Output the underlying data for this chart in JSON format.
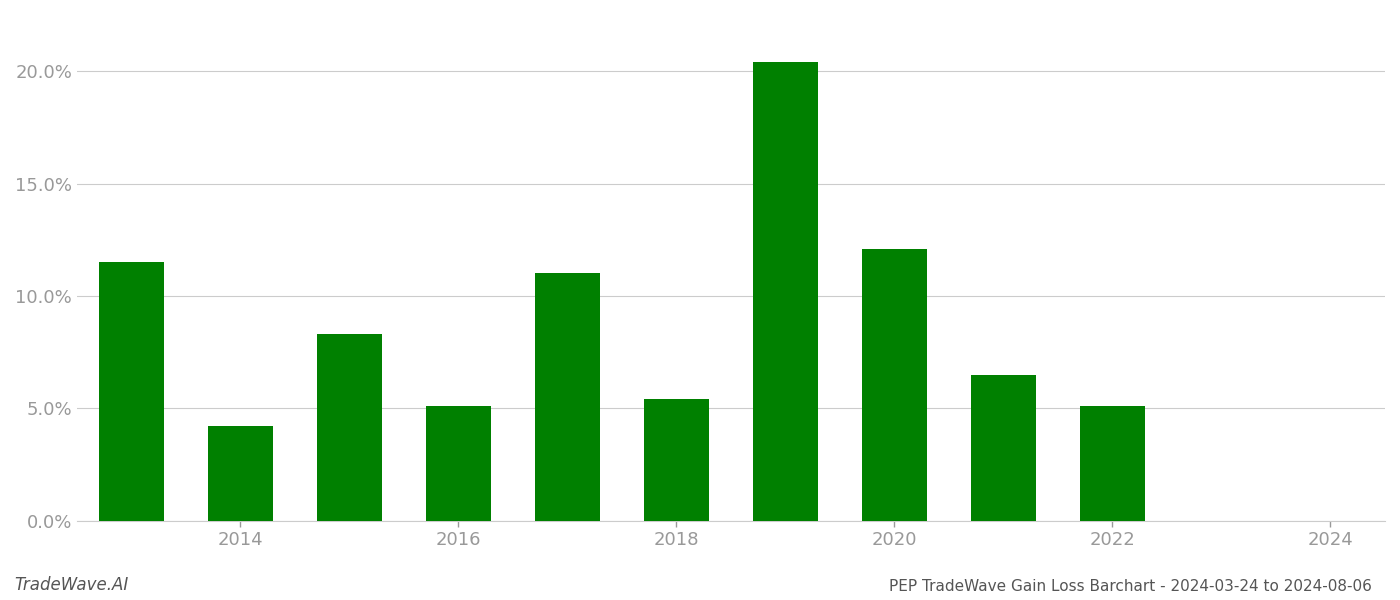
{
  "years": [
    2013,
    2014,
    2015,
    2016,
    2017,
    2018,
    2019,
    2020,
    2021,
    2022,
    2023
  ],
  "values": [
    0.115,
    0.042,
    0.083,
    0.051,
    0.11,
    0.054,
    0.204,
    0.121,
    0.065,
    0.051,
    0.0
  ],
  "bar_color": "#008000",
  "background_color": "#ffffff",
  "title": "PEP TradeWave Gain Loss Barchart - 2024-03-24 to 2024-08-06",
  "watermark": "TradeWave.AI",
  "ylim": [
    0,
    0.225
  ],
  "yticks": [
    0.0,
    0.05,
    0.1,
    0.15,
    0.2
  ],
  "ytick_labels": [
    "0.0%",
    "5.0%",
    "10.0%",
    "15.0%",
    "20.0%"
  ],
  "xticks": [
    2014,
    2016,
    2018,
    2020,
    2022,
    2024
  ],
  "xtick_labels": [
    "2014",
    "2016",
    "2018",
    "2020",
    "2022",
    "2024"
  ],
  "xlim": [
    2012.5,
    2024.5
  ],
  "grid_color": "#cccccc",
  "tick_color": "#999999",
  "title_fontsize": 11,
  "watermark_fontsize": 12,
  "tick_fontsize": 13,
  "bar_width": 0.6
}
